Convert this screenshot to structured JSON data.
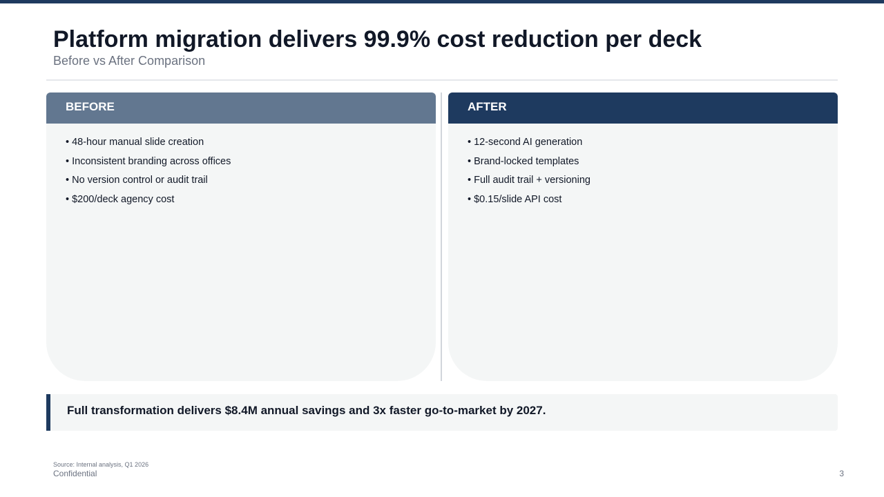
{
  "header": {
    "title": "Platform migration delivers 99.9% cost reduction per deck",
    "subtitle": "Before vs After Comparison"
  },
  "panels": [
    {
      "heading": "BEFORE",
      "items": [
        "• 48-hour manual slide creation",
        "• Inconsistent branding across offices",
        "• No version control or audit trail",
        "• $200/deck agency cost"
      ]
    },
    {
      "heading": "AFTER",
      "items": [
        "• 12-second AI generation",
        "• Brand-locked templates",
        "• Full audit trail + versioning",
        "• $0.15/slide API cost"
      ]
    }
  ],
  "callout": "Full transformation delivers $8.4M annual savings and 3x faster go-to-market by 2027.",
  "footer": {
    "source": "Source: Internal analysis, Q1 2026",
    "confidential": "Confidential",
    "page": "3"
  }
}
